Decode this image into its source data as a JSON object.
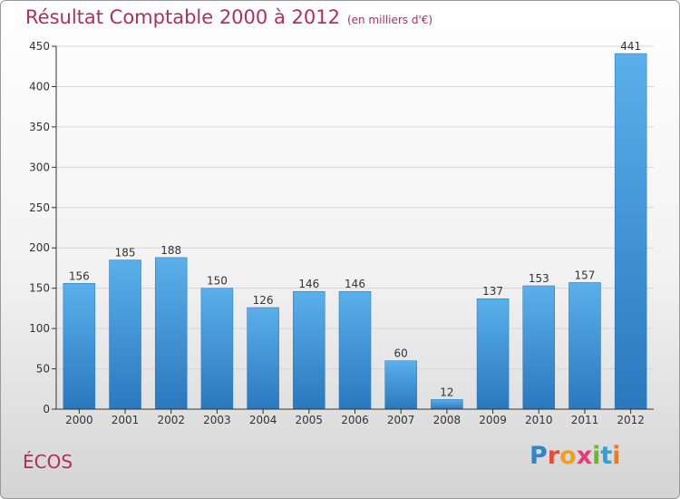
{
  "header": {
    "title": "Résultat Comptable 2000 à 2012",
    "subtitle": "(en milliers d'€)"
  },
  "footer": {
    "commune": "ÉCOS",
    "logo_text": [
      "P",
      "r",
      "o",
      "x",
      "i",
      "t",
      "i"
    ]
  },
  "colors": {
    "title": "#b0305a",
    "bar_top": "#5ab0ea",
    "bar_bottom": "#2a78bf",
    "grid": "#d6d6d6",
    "axis": "#333333"
  },
  "chart_data": {
    "type": "bar",
    "title": "Résultat Comptable 2000 à 2012",
    "xlabel": "",
    "ylabel": "",
    "categories": [
      "2000",
      "2001",
      "2002",
      "2003",
      "2004",
      "2005",
      "2006",
      "2007",
      "2008",
      "2009",
      "2010",
      "2011",
      "2012"
    ],
    "values": [
      156,
      185,
      188,
      150,
      126,
      146,
      146,
      60,
      12,
      137,
      153,
      157,
      441
    ],
    "ylim": [
      0,
      450
    ],
    "yticks": [
      0,
      50,
      100,
      150,
      200,
      250,
      300,
      350,
      400,
      450
    ],
    "grid": true
  }
}
